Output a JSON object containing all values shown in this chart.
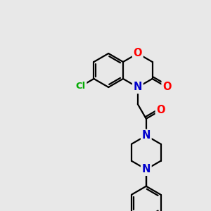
{
  "bg": "#e8e8e8",
  "atom_colors": {
    "C": "#000000",
    "N": "#0000cc",
    "O": "#ff0000",
    "Cl": "#00aa00"
  },
  "bond_color": "#000000",
  "bond_width": 1.6,
  "font_size": 10.5,
  "font_size_cl": 9.5
}
